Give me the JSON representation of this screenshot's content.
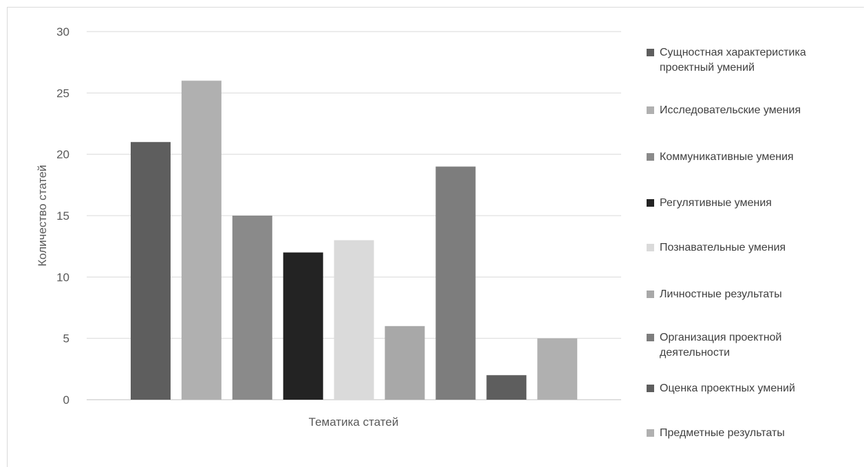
{
  "chart_data": {
    "type": "bar",
    "title": "",
    "xlabel": "Тематика статей",
    "ylabel": "Количество статей",
    "ylim": [
      0,
      30
    ],
    "yticks": [
      0,
      5,
      10,
      15,
      20,
      25,
      30
    ],
    "grid": true,
    "legend_position": "right",
    "series": [
      {
        "name": "Сущностная характеристика проектный умений",
        "value": 21,
        "color": "#5e5e5e"
      },
      {
        "name": "Исследовательские умения",
        "value": 26,
        "color": "#b0b0b0"
      },
      {
        "name": "Коммуникативные умения",
        "value": 15,
        "color": "#8a8a8a"
      },
      {
        "name": "Регулятивные умения",
        "value": 12,
        "color": "#232323"
      },
      {
        "name": "Познавательные умения",
        "value": 13,
        "color": "#dadada"
      },
      {
        "name": "Личностные результаты",
        "value": 6,
        "color": "#a8a8a8"
      },
      {
        "name": "Организация проектной деятельности",
        "value": 19,
        "color": "#7d7d7d"
      },
      {
        "name": "Оценка проектных умений",
        "value": 2,
        "color": "#5e5e5e"
      },
      {
        "name": "Предметные результаты",
        "value": 5,
        "color": "#b0b0b0"
      }
    ]
  }
}
